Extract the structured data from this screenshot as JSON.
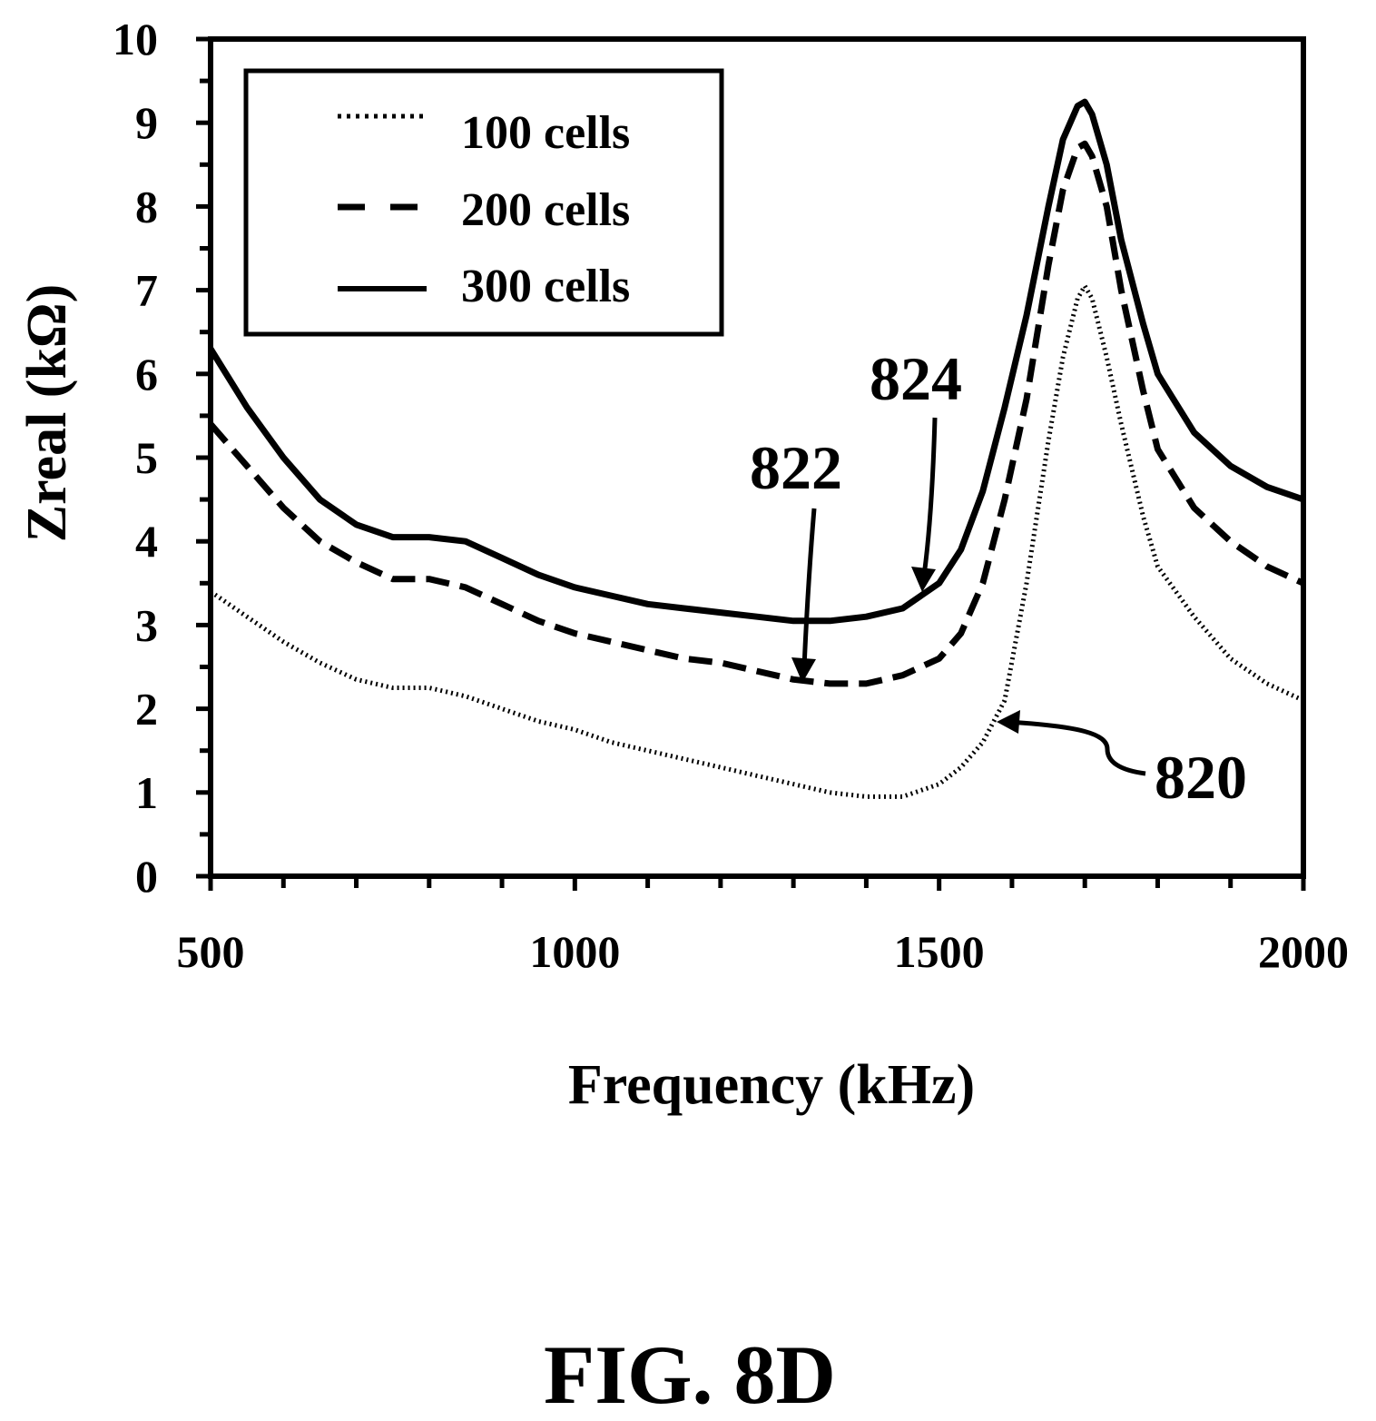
{
  "figure_caption": "FIG. 8D",
  "chart_data": {
    "type": "line",
    "title": "",
    "xlabel": "Frequency (kHz)",
    "ylabel": "Zreal (kΩ)",
    "xlim": [
      500,
      2000
    ],
    "ylim": [
      0,
      10
    ],
    "x_ticks": [
      "500",
      "1000",
      "1500",
      "2000"
    ],
    "y_ticks": [
      "0",
      "1",
      "2",
      "3",
      "4",
      "5",
      "6",
      "7",
      "8",
      "9",
      "10"
    ],
    "grid": false,
    "legend_position": "top-left",
    "series": [
      {
        "name": "100 cells",
        "style": "dotted",
        "x": [
          500,
          550,
          600,
          650,
          700,
          750,
          800,
          850,
          900,
          950,
          1000,
          1050,
          1100,
          1150,
          1200,
          1250,
          1300,
          1350,
          1400,
          1450,
          1500,
          1530,
          1560,
          1590,
          1620,
          1650,
          1670,
          1690,
          1700,
          1710,
          1730,
          1750,
          1780,
          1800,
          1850,
          1900,
          1950,
          2000
        ],
        "values": [
          3.4,
          3.1,
          2.8,
          2.55,
          2.35,
          2.25,
          2.25,
          2.15,
          2.0,
          1.85,
          1.75,
          1.6,
          1.5,
          1.4,
          1.3,
          1.2,
          1.1,
          1.0,
          0.95,
          0.95,
          1.1,
          1.3,
          1.6,
          2.1,
          3.5,
          5.2,
          6.2,
          6.9,
          7.05,
          6.9,
          6.2,
          5.4,
          4.3,
          3.7,
          3.1,
          2.6,
          2.3,
          2.1
        ]
      },
      {
        "name": "200 cells",
        "style": "dashed",
        "x": [
          500,
          550,
          600,
          650,
          700,
          750,
          800,
          850,
          900,
          950,
          1000,
          1050,
          1100,
          1150,
          1200,
          1250,
          1300,
          1350,
          1400,
          1450,
          1500,
          1530,
          1560,
          1590,
          1620,
          1650,
          1670,
          1690,
          1700,
          1710,
          1730,
          1750,
          1780,
          1800,
          1850,
          1900,
          1950,
          2000
        ],
        "values": [
          5.4,
          4.9,
          4.4,
          4.0,
          3.75,
          3.55,
          3.55,
          3.45,
          3.25,
          3.05,
          2.9,
          2.8,
          2.7,
          2.6,
          2.55,
          2.45,
          2.35,
          2.3,
          2.3,
          2.4,
          2.6,
          2.9,
          3.5,
          4.5,
          5.7,
          7.3,
          8.2,
          8.7,
          8.75,
          8.6,
          8.0,
          7.0,
          5.8,
          5.1,
          4.4,
          4.0,
          3.7,
          3.5
        ]
      },
      {
        "name": "300 cells",
        "style": "solid",
        "x": [
          500,
          550,
          600,
          650,
          700,
          750,
          800,
          850,
          900,
          950,
          1000,
          1050,
          1100,
          1150,
          1200,
          1250,
          1300,
          1350,
          1400,
          1450,
          1500,
          1530,
          1560,
          1590,
          1620,
          1650,
          1670,
          1690,
          1700,
          1710,
          1730,
          1750,
          1780,
          1800,
          1850,
          1900,
          1950,
          2000
        ],
        "values": [
          6.3,
          5.6,
          5.0,
          4.5,
          4.2,
          4.05,
          4.05,
          4.0,
          3.8,
          3.6,
          3.45,
          3.35,
          3.25,
          3.2,
          3.15,
          3.1,
          3.05,
          3.05,
          3.1,
          3.2,
          3.5,
          3.9,
          4.6,
          5.6,
          6.7,
          8.0,
          8.8,
          9.2,
          9.25,
          9.1,
          8.5,
          7.6,
          6.6,
          6.0,
          5.3,
          4.9,
          4.65,
          4.5
        ]
      }
    ],
    "annotations": [
      {
        "text": "820",
        "series": "100 cells"
      },
      {
        "text": "822",
        "series": "200 cells"
      },
      {
        "text": "824",
        "series": "300 cells"
      }
    ]
  }
}
